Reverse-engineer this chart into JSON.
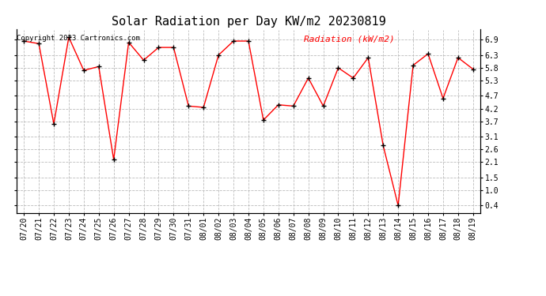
{
  "title": "Solar Radiation per Day KW/m2 20230819",
  "copyright": "Copyright 2023 Cartronics.com",
  "legend_label": "Radiation (kW/m2)",
  "dates": [
    "07/20",
    "07/21",
    "07/22",
    "07/23",
    "07/24",
    "07/25",
    "07/26",
    "07/27",
    "07/28",
    "07/29",
    "07/30",
    "07/31",
    "08/01",
    "08/02",
    "08/03",
    "08/04",
    "08/05",
    "08/06",
    "08/07",
    "08/08",
    "08/09",
    "08/10",
    "08/11",
    "08/12",
    "08/13",
    "08/14",
    "08/15",
    "08/16",
    "08/17",
    "08/18",
    "08/19"
  ],
  "values": [
    6.85,
    6.75,
    3.6,
    7.0,
    5.7,
    5.85,
    2.2,
    6.8,
    6.1,
    6.6,
    6.6,
    4.3,
    4.25,
    6.3,
    6.85,
    6.85,
    3.75,
    4.35,
    4.3,
    5.4,
    4.3,
    5.8,
    5.4,
    6.2,
    2.75,
    0.4,
    5.9,
    6.35,
    4.6,
    6.2,
    5.75
  ],
  "line_color": "red",
  "marker_color": "black",
  "grid_color": "#bbbbbb",
  "background_color": "white",
  "title_fontsize": 11,
  "yticks": [
    0.4,
    1.0,
    1.5,
    2.1,
    2.6,
    3.1,
    3.7,
    4.2,
    4.7,
    5.3,
    5.8,
    6.3,
    6.9
  ],
  "ylim": [
    0.1,
    7.3
  ],
  "legend_color": "red",
  "tick_fontsize": 7,
  "copyright_fontsize": 6.5
}
